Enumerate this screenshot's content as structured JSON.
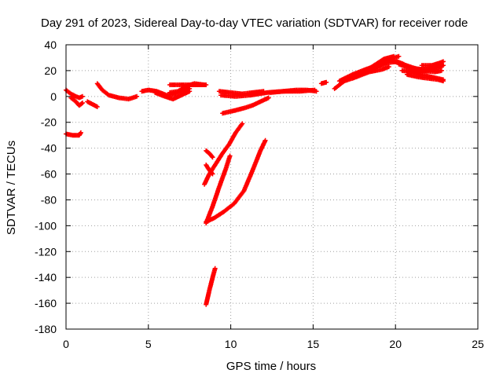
{
  "chart_data": {
    "type": "scatter",
    "title": "Day 291 of 2023, Sidereal Day-to-day VTEC variation (SDTVAR) for receiver rode",
    "xlabel": "GPS time / hours",
    "ylabel": "SDTVAR / TECUs",
    "xlim": [
      0,
      25
    ],
    "ylim": [
      -180,
      40
    ],
    "xticks": [
      0,
      5,
      10,
      15,
      20,
      25
    ],
    "yticks": [
      -180,
      -160,
      -140,
      -120,
      -100,
      -80,
      -60,
      -40,
      -20,
      0,
      20,
      40
    ],
    "grid": true,
    "series_color": "#ff0000",
    "tracks": [
      [
        [
          0.0,
          5
        ],
        [
          0.3,
          2
        ],
        [
          0.6,
          0
        ],
        [
          0.8,
          -1
        ],
        [
          1.0,
          0
        ]
      ],
      [
        [
          0.3,
          -1
        ],
        [
          0.6,
          -4
        ],
        [
          0.8,
          -7
        ],
        [
          1.0,
          -5
        ]
      ],
      [
        [
          1.3,
          -4
        ],
        [
          1.6,
          -6
        ],
        [
          1.9,
          -8
        ]
      ],
      [
        [
          0.0,
          -29
        ],
        [
          0.4,
          -30
        ],
        [
          0.8,
          -30
        ],
        [
          0.9,
          -28
        ]
      ],
      [
        [
          1.9,
          10
        ],
        [
          2.2,
          5
        ],
        [
          2.6,
          1
        ],
        [
          3.2,
          -1
        ],
        [
          3.8,
          -2
        ],
        [
          4.3,
          0
        ]
      ],
      [
        [
          4.6,
          4
        ],
        [
          5.0,
          5
        ],
        [
          5.5,
          4
        ],
        [
          6.1,
          1
        ],
        [
          6.6,
          2
        ],
        [
          7.0,
          4
        ],
        [
          7.5,
          6
        ]
      ],
      [
        [
          5.4,
          3
        ],
        [
          6.0,
          0
        ],
        [
          6.5,
          -2
        ],
        [
          7.0,
          1
        ],
        [
          7.5,
          4
        ]
      ],
      [
        [
          6.3,
          3
        ],
        [
          6.8,
          4
        ],
        [
          7.3,
          8
        ],
        [
          7.8,
          10
        ],
        [
          8.4,
          9
        ]
      ],
      [
        [
          6.3,
          9
        ],
        [
          6.9,
          9
        ],
        [
          7.5,
          9
        ],
        [
          8.0,
          9
        ],
        [
          8.5,
          9
        ]
      ],
      [
        [
          9.3,
          4
        ],
        [
          10.0,
          3
        ],
        [
          10.7,
          2
        ],
        [
          11.3,
          3
        ],
        [
          12.0,
          4
        ]
      ],
      [
        [
          9.4,
          1
        ],
        [
          10.3,
          0
        ],
        [
          11.2,
          1
        ],
        [
          12.2,
          3
        ],
        [
          13.2,
          4
        ],
        [
          14.2,
          4
        ],
        [
          15.1,
          5
        ]
      ],
      [
        [
          9.5,
          -13
        ],
        [
          10.2,
          -11
        ],
        [
          10.8,
          -9
        ],
        [
          11.3,
          -7
        ],
        [
          11.8,
          -4
        ],
        [
          12.3,
          -1
        ]
      ],
      [
        [
          12.4,
          3
        ],
        [
          13.2,
          4
        ],
        [
          14.0,
          5
        ],
        [
          14.6,
          5
        ],
        [
          15.2,
          4
        ]
      ],
      [
        [
          15.5,
          10
        ],
        [
          15.8,
          11
        ]
      ],
      [
        [
          16.3,
          6
        ],
        [
          16.9,
          12
        ],
        [
          17.6,
          15
        ],
        [
          18.4,
          19
        ],
        [
          19.2,
          21
        ],
        [
          19.6,
          23
        ]
      ],
      [
        [
          16.6,
          12
        ],
        [
          17.4,
          17
        ],
        [
          18.2,
          21
        ],
        [
          18.9,
          24
        ],
        [
          19.5,
          27
        ]
      ],
      [
        [
          17.4,
          14
        ],
        [
          18.1,
          19
        ],
        [
          18.7,
          24
        ],
        [
          19.3,
          29
        ],
        [
          19.9,
          31
        ]
      ],
      [
        [
          18.5,
          20
        ],
        [
          19.1,
          25
        ],
        [
          19.7,
          29
        ],
        [
          20.2,
          31
        ]
      ],
      [
        [
          18.9,
          23
        ],
        [
          19.5,
          26
        ],
        [
          20.1,
          27
        ],
        [
          20.5,
          25
        ]
      ],
      [
        [
          19.6,
          28
        ],
        [
          20.2,
          26
        ],
        [
          20.9,
          23
        ],
        [
          21.6,
          20
        ],
        [
          22.4,
          19
        ],
        [
          22.8,
          20
        ]
      ],
      [
        [
          20.2,
          25
        ],
        [
          20.9,
          22
        ],
        [
          21.6,
          21
        ],
        [
          22.3,
          22
        ],
        [
          22.8,
          25
        ]
      ],
      [
        [
          20.4,
          20
        ],
        [
          21.2,
          19
        ],
        [
          21.9,
          20
        ],
        [
          22.5,
          22
        ],
        [
          22.9,
          24
        ]
      ],
      [
        [
          20.7,
          17
        ],
        [
          21.4,
          15
        ],
        [
          22.0,
          14
        ],
        [
          22.6,
          13
        ],
        [
          22.9,
          12
        ]
      ],
      [
        [
          20.9,
          20
        ],
        [
          21.5,
          17
        ],
        [
          22.2,
          15
        ],
        [
          22.9,
          13
        ]
      ],
      [
        [
          21.6,
          24
        ],
        [
          22.2,
          24
        ],
        [
          22.7,
          26
        ],
        [
          22.9,
          27
        ]
      ],
      [
        [
          8.5,
          -42
        ],
        [
          8.7,
          -44
        ],
        [
          8.9,
          -47
        ]
      ],
      [
        [
          8.4,
          -68
        ],
        [
          8.7,
          -60
        ],
        [
          9.1,
          -52
        ],
        [
          9.5,
          -44
        ],
        [
          9.9,
          -37
        ],
        [
          10.3,
          -28
        ],
        [
          10.7,
          -21
        ]
      ],
      [
        [
          8.5,
          -53
        ],
        [
          8.7,
          -57
        ],
        [
          8.9,
          -60
        ]
      ],
      [
        [
          8.5,
          -98
        ],
        [
          8.9,
          -85
        ],
        [
          9.3,
          -70
        ],
        [
          9.7,
          -56
        ],
        [
          9.95,
          -46
        ]
      ],
      [
        [
          8.5,
          -97
        ],
        [
          9.0,
          -94
        ],
        [
          9.6,
          -89
        ],
        [
          10.2,
          -83
        ],
        [
          10.8,
          -73
        ],
        [
          11.3,
          -58
        ],
        [
          11.8,
          -42
        ],
        [
          12.1,
          -34
        ]
      ],
      [
        [
          8.5,
          -161
        ],
        [
          8.7,
          -150
        ],
        [
          8.9,
          -140
        ],
        [
          9.05,
          -133
        ]
      ]
    ]
  }
}
